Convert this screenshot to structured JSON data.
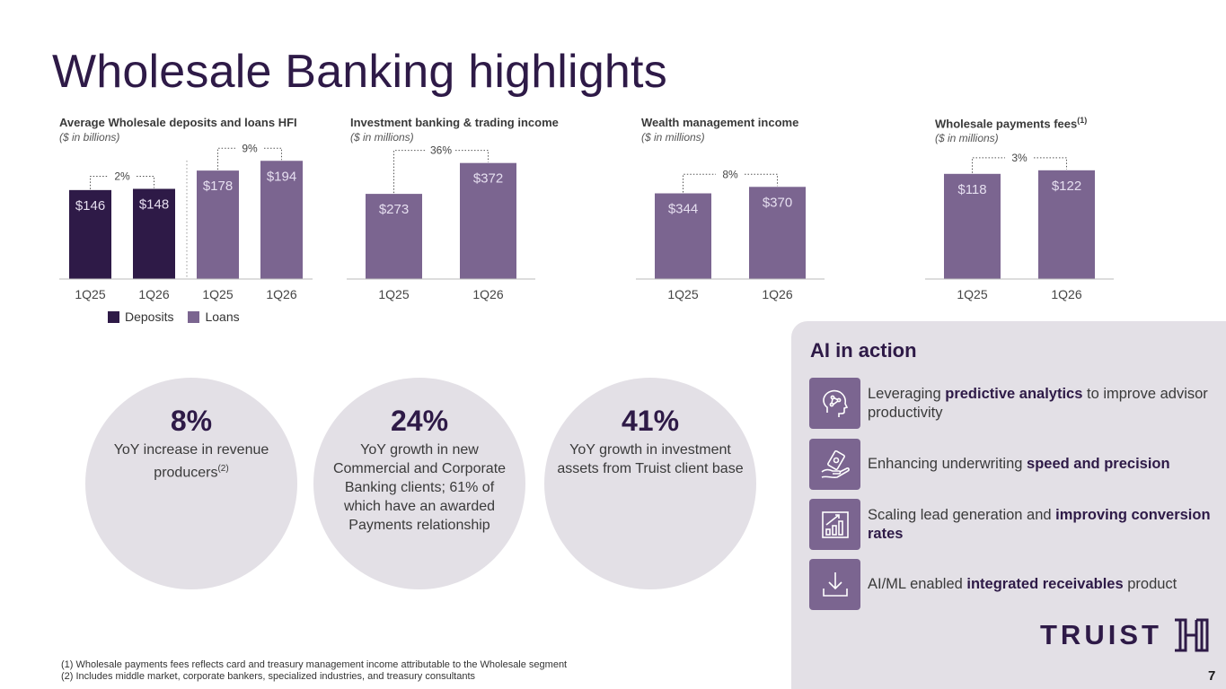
{
  "page": {
    "title": "Wholesale Banking highlights",
    "page_number": "7"
  },
  "colors": {
    "deposits": "#2e1a47",
    "loans": "#7b6590",
    "bar_label": "#e6dff0",
    "panel": "#e3e0e6"
  },
  "chart_data": [
    {
      "type": "bar",
      "title": "Average Wholesale deposits and loans HFI",
      "unit": "($ in billions)",
      "categories": [
        "1Q25",
        "1Q26",
        "1Q25",
        "1Q26"
      ],
      "values": [
        146,
        148,
        178,
        194
      ],
      "labels": [
        "$146",
        "$148",
        "$178",
        "$194"
      ],
      "groups": [
        "Deposits",
        "Deposits",
        "Loans",
        "Loans"
      ],
      "growth": [
        {
          "from": 0,
          "to": 1,
          "label": "2%"
        },
        {
          "from": 2,
          "to": 3,
          "label": "9%"
        }
      ],
      "legend": [
        "Deposits",
        "Loans"
      ],
      "legend_position": "bottom",
      "ylim": [
        0,
        215
      ]
    },
    {
      "type": "bar",
      "title": "Investment banking & trading income",
      "unit": "($ in millions)",
      "categories": [
        "1Q25",
        "1Q26"
      ],
      "values": [
        273,
        372
      ],
      "labels": [
        "$273",
        "$372"
      ],
      "growth": [
        {
          "from": 0,
          "to": 1,
          "label": "36%"
        }
      ],
      "ylim": [
        0,
        420
      ]
    },
    {
      "type": "bar",
      "title": "Wealth management income",
      "unit": "($ in millions)",
      "categories": [
        "1Q25",
        "1Q26"
      ],
      "values": [
        344,
        370
      ],
      "labels": [
        "$344",
        "$370"
      ],
      "growth": [
        {
          "from": 0,
          "to": 1,
          "label": "8%"
        }
      ],
      "ylim": [
        0,
        526
      ]
    },
    {
      "type": "bar",
      "title": "Wholesale payments fees",
      "title_sup": "(1)",
      "unit": "($ in millions)",
      "categories": [
        "1Q25",
        "1Q26"
      ],
      "values": [
        118,
        122
      ],
      "labels": [
        "$118",
        "$122"
      ],
      "growth": [
        {
          "from": 0,
          "to": 1,
          "label": "3%"
        }
      ],
      "ylim": [
        0,
        147
      ]
    }
  ],
  "stats": [
    {
      "value": "8%",
      "text": "YoY increase in revenue producers",
      "sup": "(2)"
    },
    {
      "value": "24%",
      "text": "YoY growth in new Commercial and Corporate Banking clients; 61% of which have an awarded Payments relationship",
      "sup": ""
    },
    {
      "value": "41%",
      "text": "YoY growth in investment assets from Truist client base",
      "sup": ""
    }
  ],
  "ai": {
    "title": "AI in action",
    "items": [
      {
        "icon": "brain-circuit-icon",
        "pre": "Leveraging ",
        "bold": "predictive analytics",
        "post": " to improve advisor productivity"
      },
      {
        "icon": "hand-money-icon",
        "pre": "Enhancing underwriting ",
        "bold": "speed and precision",
        "post": ""
      },
      {
        "icon": "growth-chart-icon",
        "pre": "Scaling lead generation and ",
        "bold": "improving conversion rates",
        "post": ""
      },
      {
        "icon": "download-tray-icon",
        "pre": "AI/ML enabled ",
        "bold": "integrated receivables",
        "post": " product"
      }
    ]
  },
  "logo": {
    "text": "TRUIST"
  },
  "footnotes": [
    "(1)  Wholesale payments fees reflects card and treasury management income attributable to the Wholesale segment",
    "(2)  Includes middle market, corporate bankers, specialized industries, and treasury consultants"
  ]
}
